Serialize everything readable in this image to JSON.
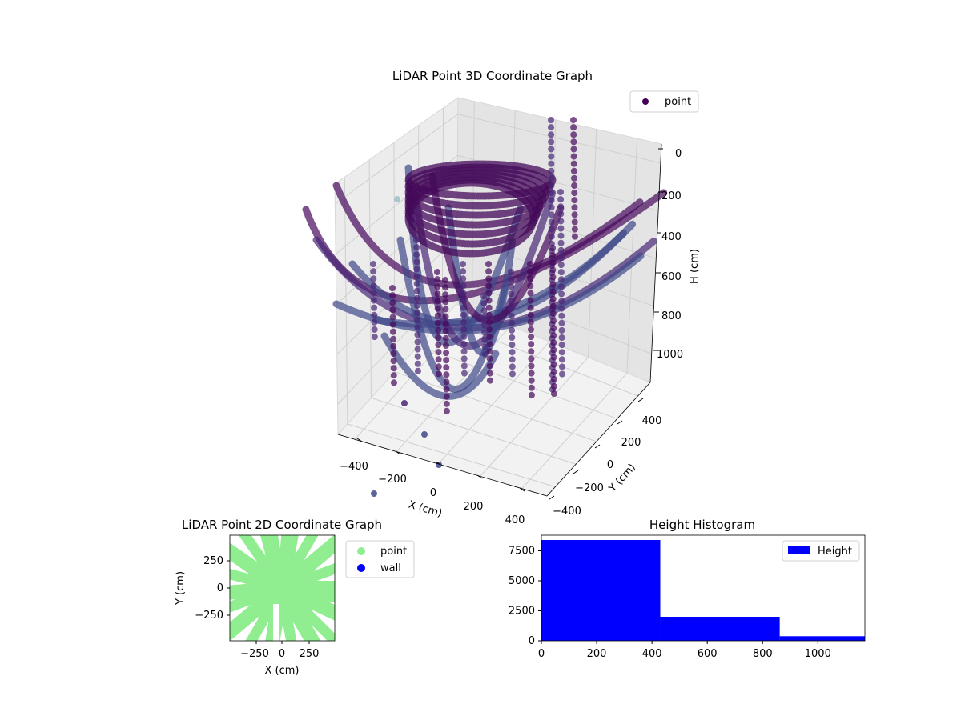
{
  "chart_data": [
    {
      "type": "scatter3d",
      "title": "LiDAR Point 3D Coordinate Graph",
      "xlabel": "X (cm)",
      "ylabel": "Y (cm)",
      "zlabel": "H (cm)",
      "x_ticks": [
        "−400",
        "−200",
        "0",
        "200",
        "400"
      ],
      "y_ticks": [
        "−400",
        "−200",
        "0",
        "200",
        "400"
      ],
      "z_ticks": [
        "0",
        "200",
        "400",
        "600",
        "800",
        "1000"
      ],
      "xlim": [
        -480,
        480
      ],
      "ylim": [
        -480,
        480
      ],
      "zlim": [
        0,
        1150
      ],
      "z_inverted": true,
      "legend": {
        "entries": [
          "point"
        ],
        "placement": "top-right"
      },
      "series": [
        {
          "name": "point",
          "color": "#440154",
          "colormap": "viridis"
        }
      ]
    },
    {
      "type": "scatter",
      "title": "LiDAR Point 2D Coordinate Graph",
      "xlabel": "X (cm)",
      "ylabel": "Y (cm)",
      "x_ticks": [
        "−250",
        "0",
        "250"
      ],
      "y_ticks": [
        "250",
        "0",
        "−250"
      ],
      "xlim": [
        -480,
        480
      ],
      "ylim": [
        -480,
        480
      ],
      "legend": {
        "entries": [
          "point",
          "wall"
        ],
        "placement": "outside-right"
      },
      "series": [
        {
          "name": "point",
          "color": "#90ee90"
        },
        {
          "name": "wall",
          "color": "#0000ff"
        }
      ]
    },
    {
      "type": "histogram",
      "title": "Height Histogram",
      "x_ticks": [
        "0",
        "200",
        "400",
        "600",
        "800",
        "1000"
      ],
      "y_ticks": [
        "0",
        "2500",
        "5000",
        "7500"
      ],
      "xlim": [
        0,
        1170
      ],
      "ylim": [
        0,
        8800
      ],
      "bins": [
        {
          "start": 0,
          "end": 430,
          "count": 8400
        },
        {
          "start": 430,
          "end": 862,
          "count": 2000
        },
        {
          "start": 862,
          "end": 1170,
          "count": 380
        }
      ],
      "legend": {
        "entries": [
          "Height"
        ],
        "placement": "top-right"
      },
      "series": [
        {
          "name": "Height",
          "color": "#0000ff"
        }
      ]
    }
  ]
}
